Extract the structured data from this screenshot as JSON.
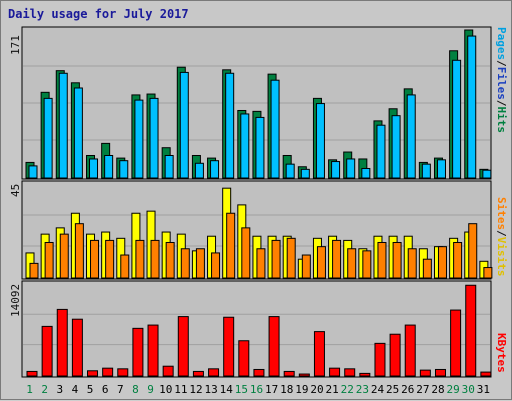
{
  "title": "Daily usage for July 2017",
  "colors": {
    "background": "#c8c8c8",
    "plot_bg": "#c0c0c0",
    "grid": "#a0a0a0",
    "hits": "#008040",
    "files": "#00c0ff",
    "pages": "#00c0ff",
    "visits": "#ffff00",
    "sites": "#ff8000",
    "kbytes": "#ff0000",
    "weekday_label": "#000000",
    "weekend_label": "#008040",
    "title": "#1a1a9a"
  },
  "panels": {
    "top": {
      "y_max_label": "171",
      "legend": {
        "pages": "Pages",
        "sep1": "/",
        "files": "Files",
        "sep2": "/",
        "hits": "Hits"
      }
    },
    "middle": {
      "y_max_label": "45",
      "legend": {
        "sites": "Sites",
        "sep": "/",
        "visits": "Visits"
      }
    },
    "bottom": {
      "y_max_label": "14092",
      "legend": {
        "kbytes": "KBytes"
      }
    }
  },
  "chart_data": {
    "type": "bar",
    "title": "Daily usage for July 2017",
    "x": [
      "1",
      "2",
      "3",
      "4",
      "5",
      "6",
      "7",
      "8",
      "9",
      "10",
      "11",
      "12",
      "13",
      "14",
      "15",
      "16",
      "17",
      "18",
      "19",
      "20",
      "21",
      "22",
      "23",
      "24",
      "25",
      "26",
      "27",
      "28",
      "29",
      "30",
      "31"
    ],
    "weekend_days": [
      "1",
      "2",
      "8",
      "9",
      "15",
      "16",
      "22",
      "23",
      "29",
      "30"
    ],
    "panels": [
      {
        "name": "hits-files",
        "ylim": [
          0,
          171
        ],
        "series": [
          {
            "name": "Hits",
            "values": [
              18,
              99,
              124,
              110,
              26,
              40,
              23,
              96,
              97,
              35,
              128,
              26,
              23,
              125,
              78,
              77,
              120,
              26,
              13,
              92,
              21,
              30,
              22,
              66,
              80,
              103,
              18,
              23,
              147,
              171,
              10
            ]
          },
          {
            "name": "Files",
            "values": [
              14,
              92,
              121,
              104,
              22,
              26,
              20,
              90,
              92,
              26,
              122,
              17,
              20,
              121,
              74,
              70,
              113,
              16,
              10,
              86,
              19,
              22,
              11,
              61,
              72,
              96,
              16,
              21,
              136,
              164,
              9
            ]
          }
        ]
      },
      {
        "name": "visits-sites",
        "ylim": [
          0,
          45
        ],
        "series": [
          {
            "name": "Visits",
            "values": [
              12,
              21,
              24,
              31,
              21,
              22,
              19,
              31,
              32,
              22,
              21,
              13,
              20,
              43,
              35,
              20,
              20,
              20,
              9,
              19,
              20,
              18,
              14,
              20,
              20,
              20,
              14,
              15,
              19,
              22,
              8
            ]
          },
          {
            "name": "Sites",
            "values": [
              7,
              17,
              21,
              26,
              18,
              18,
              11,
              18,
              18,
              17,
              14,
              14,
              12,
              31,
              24,
              14,
              18,
              19,
              11,
              15,
              18,
              14,
              13,
              17,
              17,
              14,
              9,
              15,
              17,
              26,
              5
            ]
          }
        ]
      },
      {
        "name": "kbytes",
        "ylim": [
          0,
          14092
        ],
        "series": [
          {
            "name": "KBytes",
            "values": [
              700,
              7600,
              10200,
              8700,
              800,
              1200,
              1100,
              7300,
              7800,
              1500,
              9100,
              700,
              1100,
              9000,
              5400,
              1000,
              9100,
              700,
              300,
              6800,
              1200,
              1100,
              400,
              5000,
              6400,
              7800,
              900,
              1000,
              10100,
              13900,
              600
            ]
          }
        ]
      }
    ]
  }
}
